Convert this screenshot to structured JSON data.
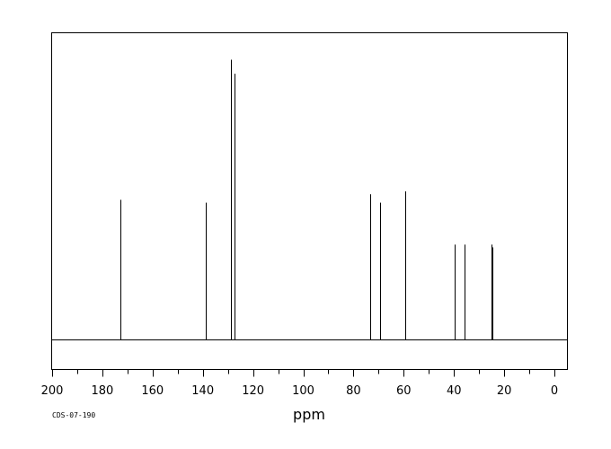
{
  "chart_data": {
    "type": "line",
    "xlabel": "ppm",
    "xlim": [
      200,
      -5
    ],
    "x_reversed": true,
    "x_ticks": [
      200,
      180,
      160,
      140,
      120,
      100,
      80,
      60,
      40,
      20,
      0
    ],
    "sample_code": "CDS-07-190",
    "grid": false,
    "legend": "none",
    "peaks": [
      {
        "ppm": 172.9,
        "intensity": 0.5
      },
      {
        "ppm": 139.0,
        "intensity": 0.49
      },
      {
        "ppm": 128.7,
        "intensity": 1.0
      },
      {
        "ppm": 127.4,
        "intensity": 0.95
      },
      {
        "ppm": 73.5,
        "intensity": 0.52
      },
      {
        "ppm": 69.5,
        "intensity": 0.49
      },
      {
        "ppm": 59.4,
        "intensity": 0.53
      },
      {
        "ppm": 39.7,
        "intensity": 0.34
      },
      {
        "ppm": 35.8,
        "intensity": 0.34
      },
      {
        "ppm": 25.2,
        "intensity": 0.34
      },
      {
        "ppm": 24.6,
        "intensity": 0.33
      }
    ]
  }
}
